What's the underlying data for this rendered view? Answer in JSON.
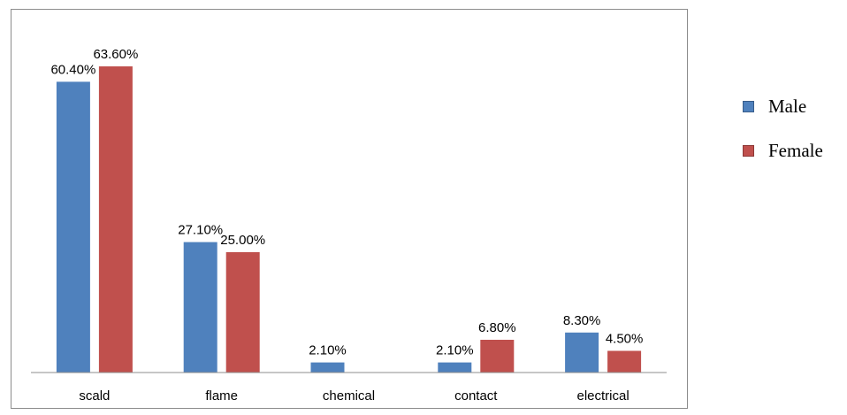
{
  "chart_data": {
    "type": "bar",
    "categories": [
      "scald",
      "flame",
      "chemical",
      "contact",
      "electrical"
    ],
    "series": [
      {
        "name": "Male",
        "color": "#4f81bd",
        "values": [
          60.4,
          27.1,
          2.1,
          2.1,
          8.3
        ],
        "labels": [
          "60.40%",
          "27.10%",
          "2.10%",
          "2.10%",
          "8.30%"
        ]
      },
      {
        "name": "Female",
        "color": "#c0504d",
        "values": [
          63.6,
          25.0,
          null,
          6.8,
          4.5
        ],
        "labels": [
          "63.60%",
          "25.00%",
          "",
          "6.80%",
          "4.50%"
        ]
      }
    ],
    "ylim": [
      0,
      70
    ],
    "grid": false,
    "legend_position": "right"
  }
}
